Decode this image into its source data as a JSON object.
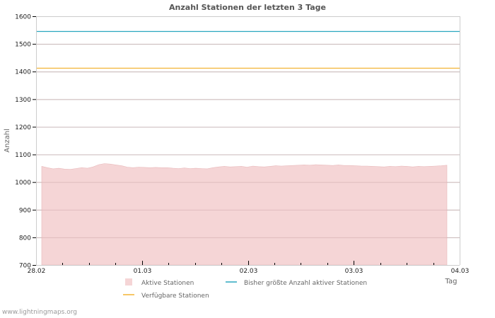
{
  "chart_data": {
    "type": "area",
    "title": "Anzahl Stationen der letzten 3 Tage",
    "xlabel": "Tag",
    "ylabel": "Anzahl",
    "ylim": [
      700,
      1600
    ],
    "yticks": [
      700,
      800,
      900,
      1000,
      1100,
      1200,
      1300,
      1400,
      1500,
      1600
    ],
    "xticks": [
      "28.02",
      "01.03",
      "02.03",
      "03.03",
      "04.03"
    ],
    "grid": true,
    "legend_position": "bottom",
    "series": [
      {
        "name": "Aktive Stationen",
        "type": "area",
        "color": "#f5d5d6",
        "x_start": "28.02 00:00",
        "x_step_hours": 1,
        "values": [
          1057,
          1052,
          1048,
          1050,
          1047,
          1046,
          1049,
          1052,
          1050,
          1055,
          1063,
          1067,
          1065,
          1062,
          1059,
          1054,
          1052,
          1054,
          1053,
          1052,
          1053,
          1052,
          1052,
          1050,
          1049,
          1051,
          1049,
          1050,
          1049,
          1048,
          1052,
          1055,
          1057,
          1055,
          1056,
          1057,
          1054,
          1058,
          1056,
          1055,
          1057,
          1059,
          1058,
          1059,
          1060,
          1061,
          1062,
          1061,
          1063,
          1062,
          1061,
          1060,
          1062,
          1060,
          1060,
          1059,
          1058,
          1058,
          1057,
          1056,
          1055,
          1057,
          1056,
          1058,
          1057,
          1055,
          1057,
          1056,
          1057,
          1058,
          1059,
          1061
        ]
      },
      {
        "name": "Bisher größte Anzahl aktiver Stationen",
        "type": "line",
        "color": "#2aa7bf",
        "value": 1545
      },
      {
        "name": "Verfügbare Stationen",
        "type": "line",
        "color": "#f2b233",
        "value": 1412
      }
    ]
  },
  "footer": "www.lightningmaps.org"
}
